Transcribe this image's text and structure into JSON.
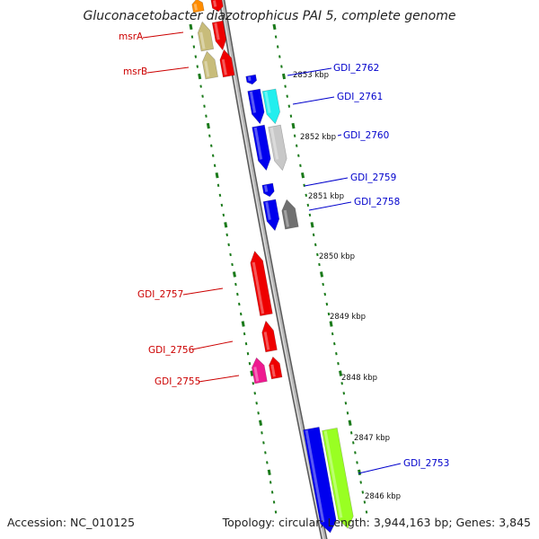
{
  "map": {
    "title": "Gluconacetobacter diazotrophicus PAI 5, complete genome",
    "accession": "Accession: NC_010125",
    "summary": "Topology: circular; Length: 3,944,163 bp; Genes: 3,845",
    "colors": {
      "backbone": "#8a8a8a",
      "tick": "#1a7a1a",
      "reverse_label": "#cc0000",
      "forward_label": "#0000cc"
    },
    "reverse_genes": [
      {
        "label": "msrA"
      },
      {
        "label": "msrB"
      },
      {
        "label": "GDI_2757"
      },
      {
        "label": "GDI_2756"
      },
      {
        "label": "GDI_2755"
      }
    ],
    "forward_genes": [
      {
        "label": "GDI_2762"
      },
      {
        "label": "GDI_2761"
      },
      {
        "label": "GDI_2760"
      },
      {
        "label": "GDI_2759"
      },
      {
        "label": "GDI_2758"
      },
      {
        "label": "GDI_2753"
      }
    ],
    "scale_ticks": [
      {
        "label": "2853 kbp"
      },
      {
        "label": "2852 kbp"
      },
      {
        "label": "2851 kbp"
      },
      {
        "label": "2850 kbp"
      },
      {
        "label": "2849 kbp"
      },
      {
        "label": "2848 kbp"
      },
      {
        "label": "2847 kbp"
      },
      {
        "label": "2846 kbp"
      }
    ]
  }
}
